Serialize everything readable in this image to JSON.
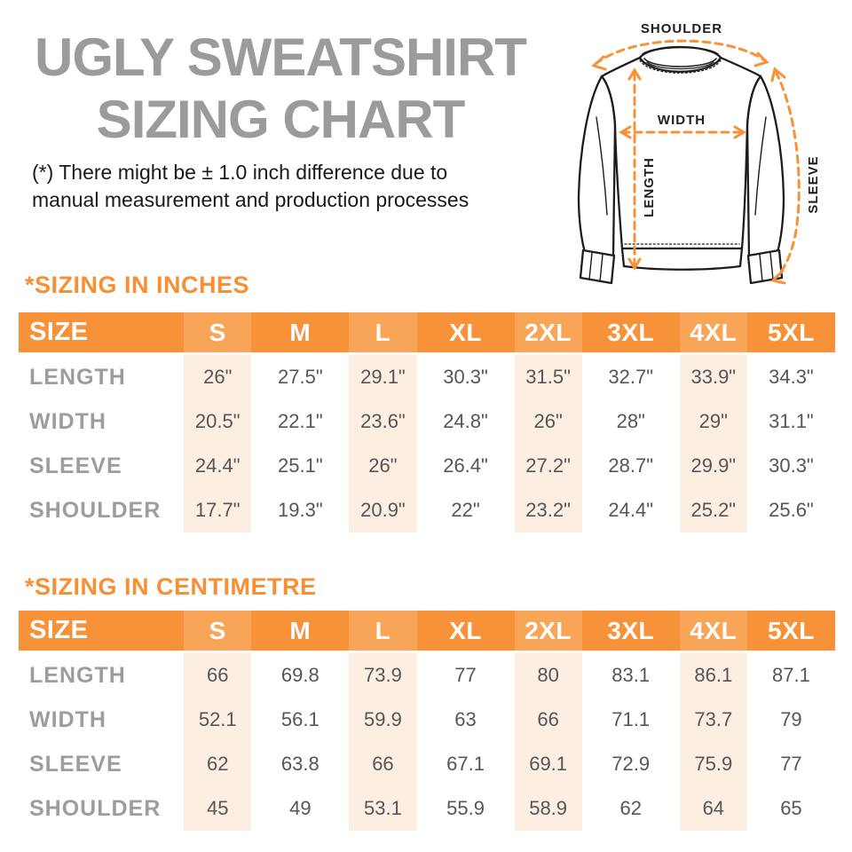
{
  "title": {
    "line1": "UGLY SWEATSHIRT",
    "line2": "SIZING CHART"
  },
  "disclaimer": {
    "line1": "(*) There might be ± 1.0 inch difference due to",
    "line2": "manual measurement and production processes"
  },
  "diagram": {
    "shoulder_label": "SHOULDER",
    "width_label": "WIDTH",
    "length_label": "LENGTH",
    "sleeve_label": "SLEEVE"
  },
  "colors": {
    "accent_orange": "#f79238",
    "header_alt_orange": "#f9a558",
    "stripe_peach": "#fcefe1",
    "heading_orange": "#f78f35",
    "title_gray": "#9b9b9e",
    "row_label_gray": "#9d9da1",
    "value_gray": "#56565a"
  },
  "tables": {
    "inches": {
      "heading": "*SIZING IN INCHES",
      "columns": [
        "SIZE",
        "S",
        "M",
        "L",
        "XL",
        "2XL",
        "3XL",
        "4XL",
        "5XL"
      ],
      "rows": [
        {
          "label": "LENGTH",
          "values": [
            "26\"",
            "27.5\"",
            "29.1\"",
            "30.3\"",
            "31.5\"",
            "32.7\"",
            "33.9\"",
            "34.3\""
          ]
        },
        {
          "label": "WIDTH",
          "values": [
            "20.5\"",
            "22.1\"",
            "23.6\"",
            "24.8\"",
            "26\"",
            "28\"",
            "29\"",
            "31.1\""
          ]
        },
        {
          "label": "SLEEVE",
          "values": [
            "24.4\"",
            "25.1\"",
            "26\"",
            "26.4\"",
            "27.2\"",
            "28.7\"",
            "29.9\"",
            "30.3\""
          ]
        },
        {
          "label": "SHOULDER",
          "values": [
            "17.7\"",
            "19.3\"",
            "20.9\"",
            "22\"",
            "23.2\"",
            "24.4\"",
            "25.2\"",
            "25.6\""
          ]
        }
      ]
    },
    "centimetre": {
      "heading": "*SIZING IN CENTIMETRE",
      "columns": [
        "SIZE",
        "S",
        "M",
        "L",
        "XL",
        "2XL",
        "3XL",
        "4XL",
        "5XL"
      ],
      "rows": [
        {
          "label": "LENGTH",
          "values": [
            "66",
            "69.8",
            "73.9",
            "77",
            "80",
            "83.1",
            "86.1",
            "87.1"
          ]
        },
        {
          "label": "WIDTH",
          "values": [
            "52.1",
            "56.1",
            "59.9",
            "63",
            "66",
            "71.1",
            "73.7",
            "79"
          ]
        },
        {
          "label": "SLEEVE",
          "values": [
            "62",
            "63.8",
            "66",
            "67.1",
            "69.1",
            "72.9",
            "75.9",
            "77"
          ]
        },
        {
          "label": "SHOULDER",
          "values": [
            "45",
            "49",
            "53.1",
            "55.9",
            "58.9",
            "62",
            "64",
            "65"
          ]
        }
      ]
    }
  }
}
